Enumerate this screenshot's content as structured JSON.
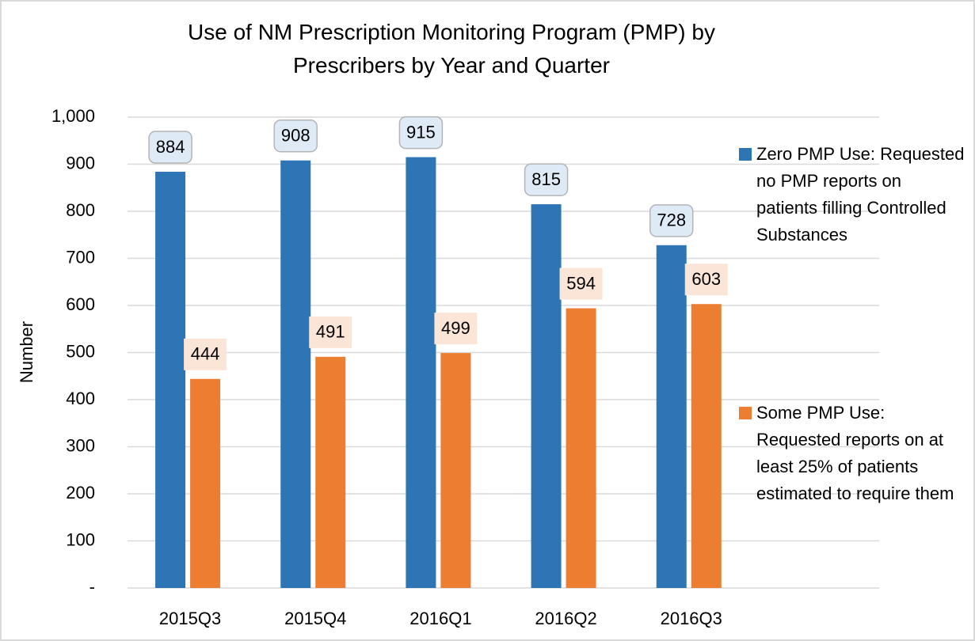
{
  "chart_data": {
    "type": "bar",
    "title": "Use of NM Prescription Monitoring Program (PMP) by Prescribers by Year and Quarter",
    "y_label": "Number",
    "categories": [
      "2015Q3",
      "2015Q4",
      "2016Q1",
      "2016Q2",
      "2016Q3",
      null
    ],
    "series": [
      {
        "name": "Zero PMP Use: Requested no PMP reports on patients filling Controlled Substances",
        "color": "#2e75b6",
        "values": [
          884,
          908,
          915,
          815,
          728,
          null
        ]
      },
      {
        "name": "Some PMP Use: Requested reports on at least 25% of patients estimated to require them",
        "color": "#ed7d31",
        "values": [
          444,
          491,
          499,
          594,
          603,
          null
        ]
      }
    ],
    "ylim": [
      0,
      1000
    ],
    "yticks": [
      {
        "value": 0,
        "label": "-"
      },
      100,
      200,
      300,
      400,
      500,
      600,
      700,
      800,
      900,
      {
        "value": 1000,
        "label": "1,000"
      }
    ],
    "grid": true,
    "legend": "right"
  }
}
